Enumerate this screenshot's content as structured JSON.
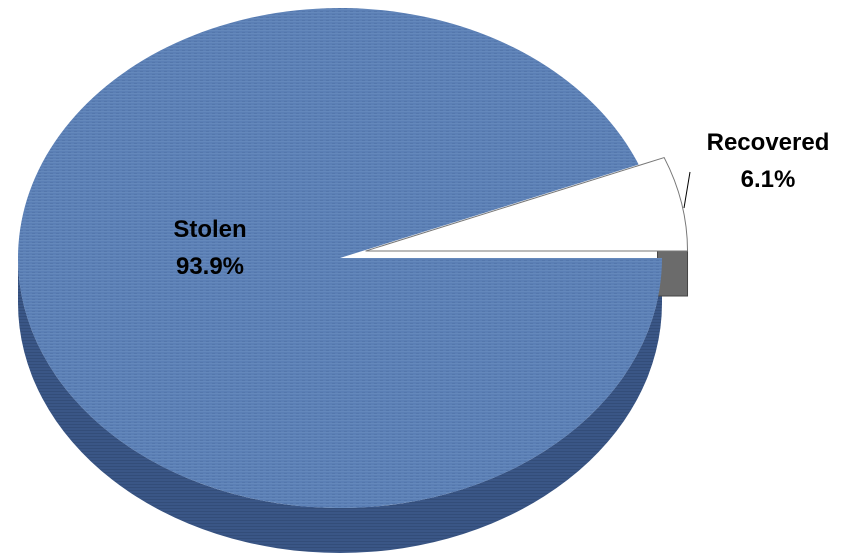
{
  "chart_data": {
    "type": "pie",
    "style": "3d-exploded",
    "slices": [
      {
        "label": "Stolen",
        "value": 93.9,
        "value_label": "93.9%",
        "color": "#5b7fb5",
        "side_color": "#3a5686"
      },
      {
        "label": "Recovered",
        "value": 6.1,
        "value_label": "6.1%",
        "color": "#ffffff",
        "side_color": "#6b6b6b",
        "exploded": true
      }
    ]
  }
}
